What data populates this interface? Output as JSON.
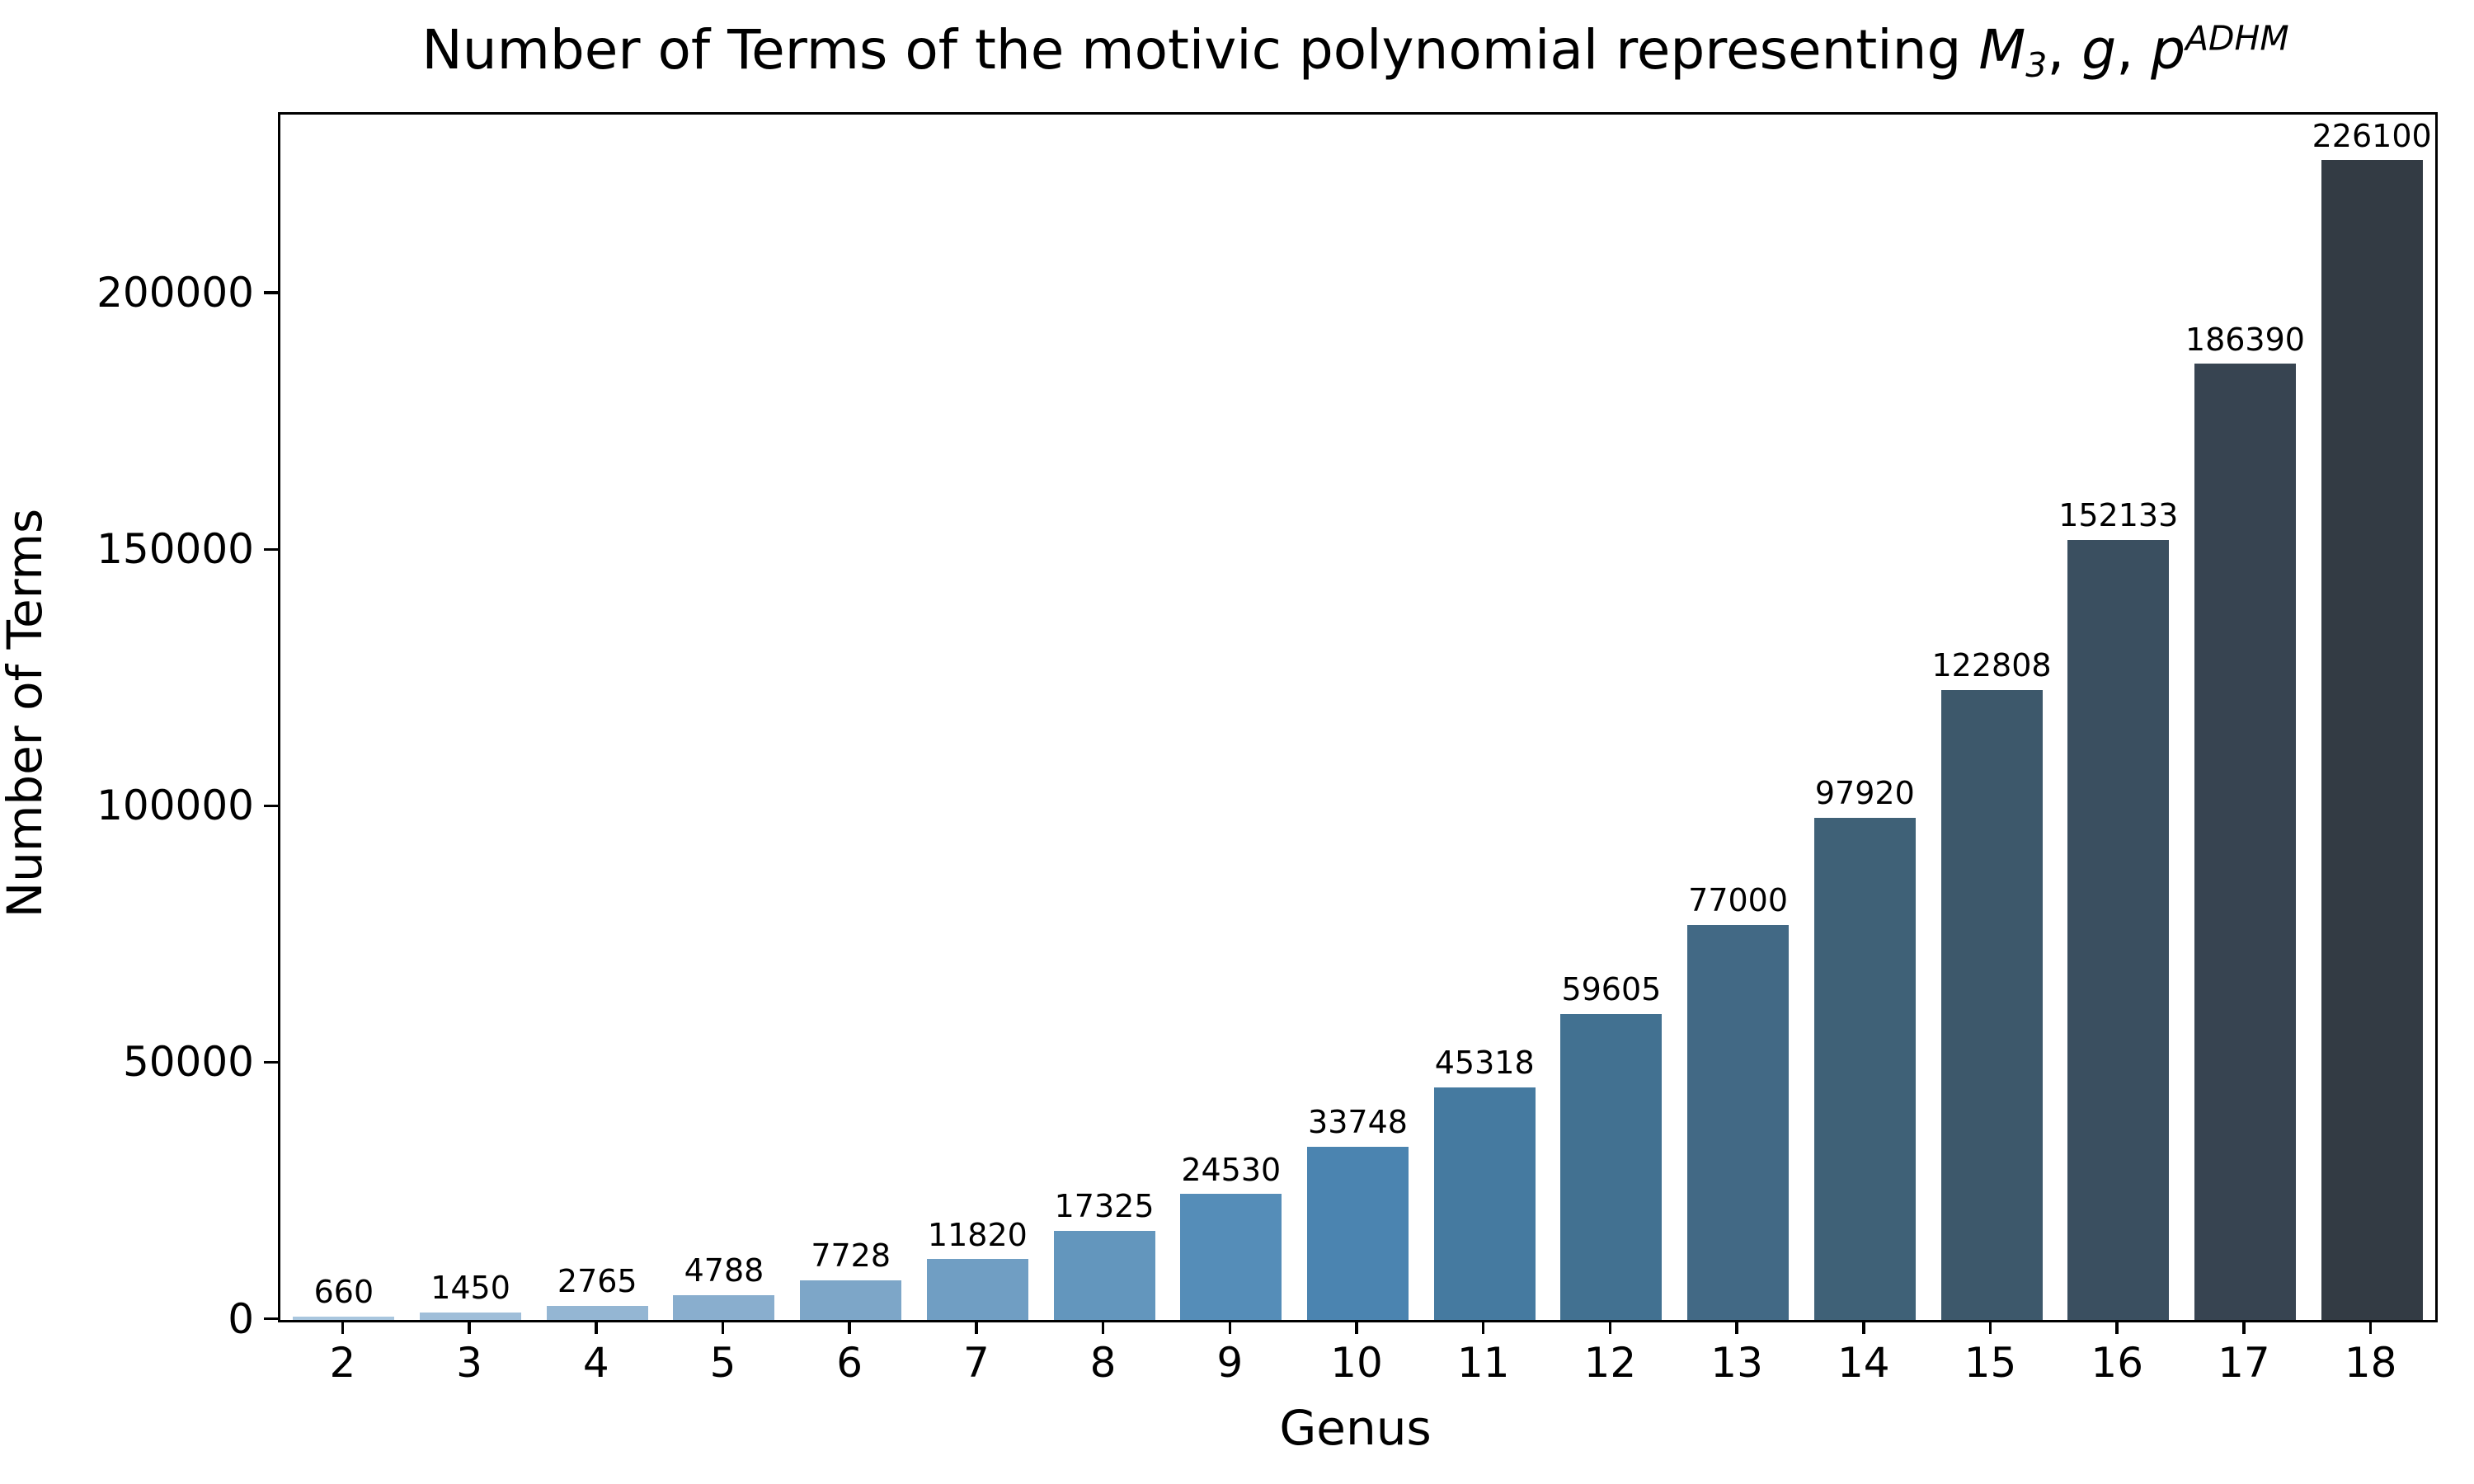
{
  "chart_data": {
    "type": "bar",
    "title": "Number of Terms of the motivic polynomial representing M_3, g, p^ADHM",
    "title_parts": {
      "prefix": "Number of Terms of the motivic polynomial representing ",
      "m": "M",
      "m_sub": "3",
      "sep1": ", ",
      "g": "g",
      "sep2": ", ",
      "p": "p",
      "p_sup": "ADHM"
    },
    "xlabel": "Genus",
    "ylabel": "Number of Terms",
    "categories": [
      "2",
      "3",
      "4",
      "5",
      "6",
      "7",
      "8",
      "9",
      "10",
      "11",
      "12",
      "13",
      "14",
      "15",
      "16",
      "17",
      "18"
    ],
    "values": [
      660,
      1450,
      2765,
      4788,
      7728,
      11820,
      17325,
      24530,
      33748,
      45318,
      59605,
      77000,
      97920,
      122808,
      152133,
      186390,
      226100
    ],
    "bar_labels": [
      "660",
      "1450",
      "2765",
      "4788",
      "7728",
      "11820",
      "17325",
      "24530",
      "33748",
      "45318",
      "59605",
      "77000",
      "97920",
      "122808",
      "152133",
      "186390",
      "226100"
    ],
    "yticks": [
      0,
      50000,
      100000,
      150000,
      200000
    ],
    "ytick_labels": [
      "0",
      "50000",
      "100000",
      "150000",
      "200000"
    ],
    "ylim": [
      0,
      235000
    ],
    "grid": false,
    "legend": null,
    "bar_width_fraction": 0.8,
    "palette": [
      "#a9c6de",
      "#9fbed9",
      "#94b6d3",
      "#89aece",
      "#7da6c8",
      "#709ec3",
      "#6396bd",
      "#558db8",
      "#4b84b0",
      "#457aa0",
      "#427191",
      "#426985",
      "#3f6177",
      "#3d586b",
      "#3a4f60",
      "#374451",
      "#333b44"
    ],
    "axis_color": "#000000",
    "text_color": "#000000",
    "background": "#ffffff"
  }
}
